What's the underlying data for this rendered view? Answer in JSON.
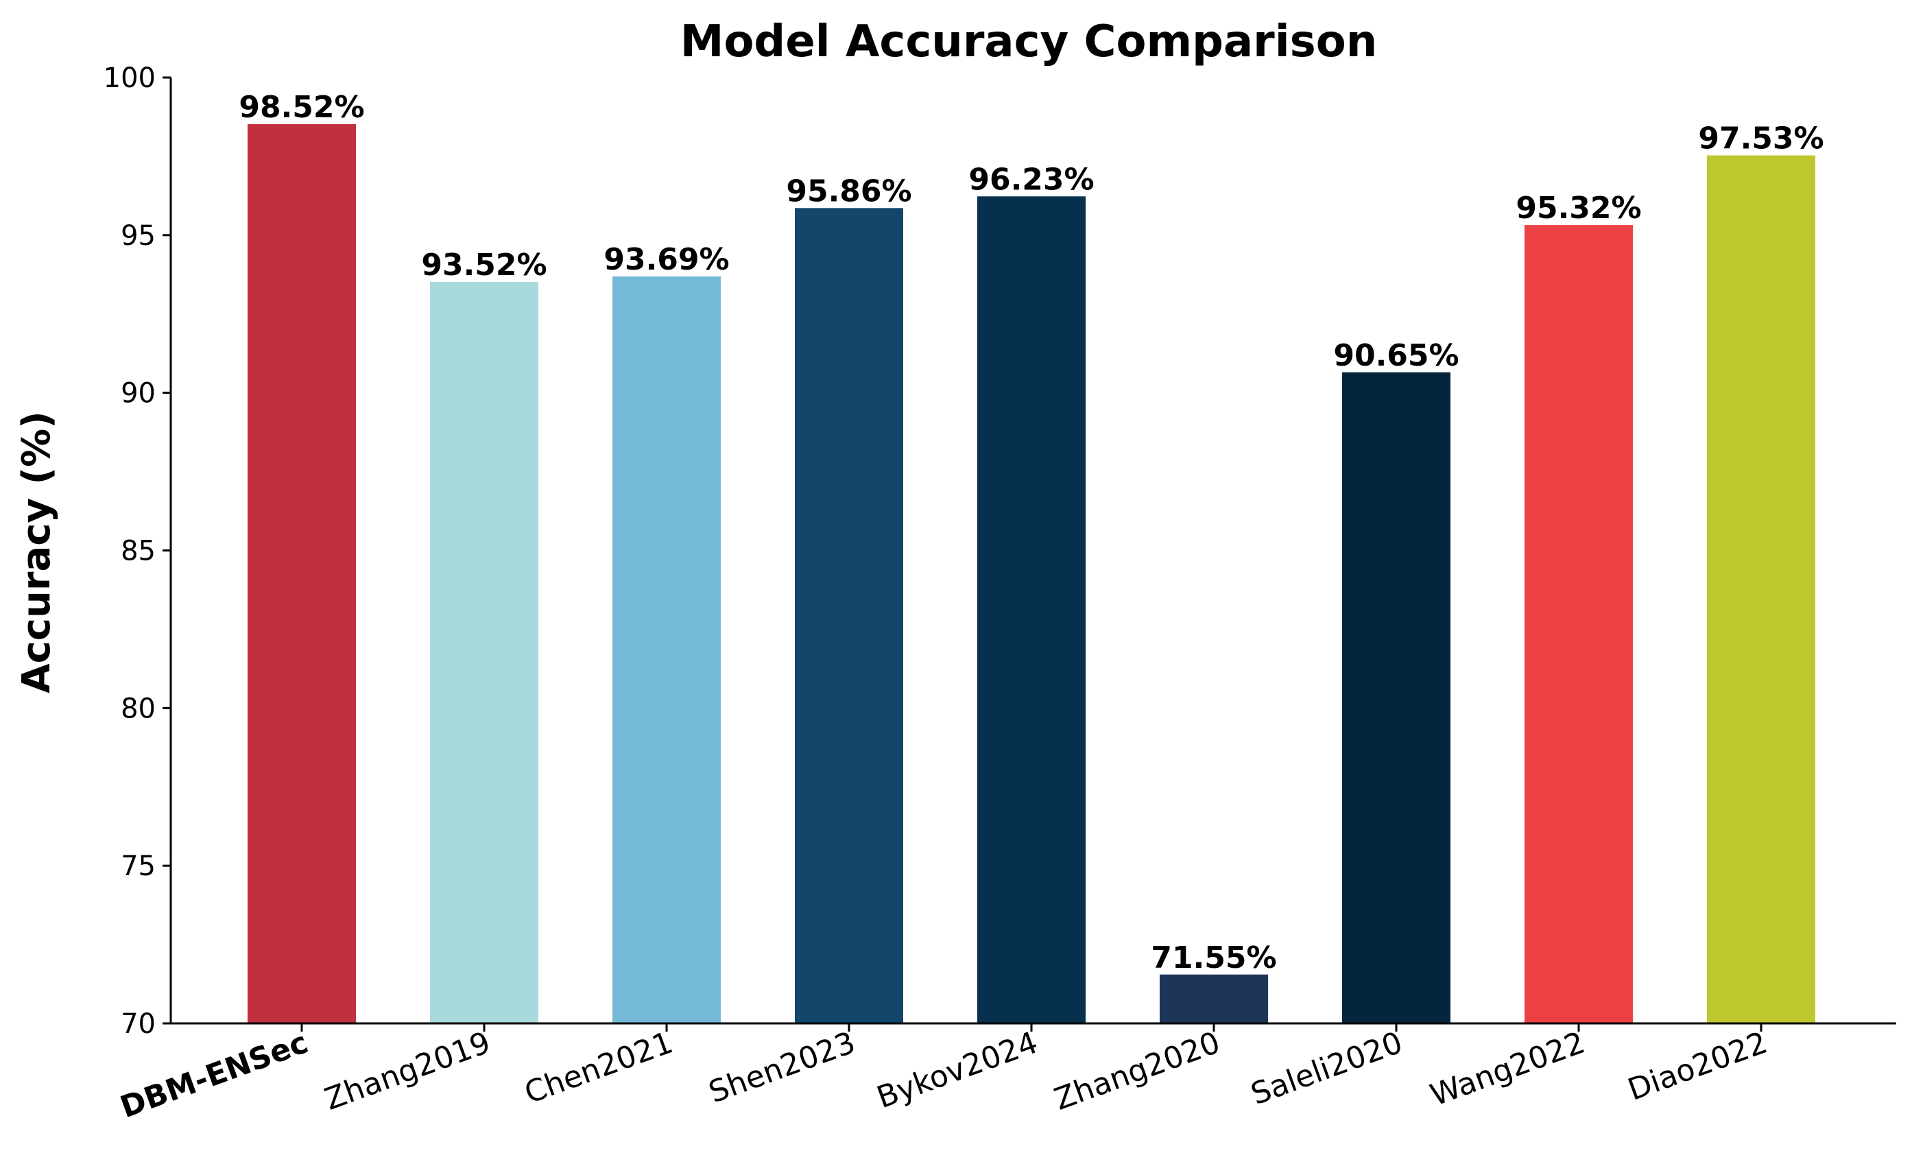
{
  "chart_data": {
    "type": "bar",
    "title": "Model Accuracy Comparison",
    "xlabel": "",
    "ylabel": "Accuracy (%)",
    "ylim": [
      70,
      100
    ],
    "yticks": [
      70,
      75,
      80,
      85,
      90,
      95,
      100
    ],
    "grid": false,
    "categories": [
      "DBM-ENSec",
      "Zhang2019",
      "Chen2021",
      "Shen2023",
      "Bykov2024",
      "Zhang2020",
      "Saleli2020",
      "Wang2022",
      "Diao2022"
    ],
    "values": [
      98.52,
      93.52,
      93.69,
      95.86,
      96.23,
      71.55,
      90.65,
      95.32,
      97.53
    ],
    "data_labels": [
      "98.52%",
      "93.52%",
      "93.69%",
      "95.86%",
      "96.23%",
      "71.55%",
      "90.65%",
      "95.32%",
      "97.53%"
    ],
    "colors": [
      "#C1303F",
      "#A8D9DC",
      "#74B9D6",
      "#12476B",
      "#06304E",
      "#1D3557",
      "#05253D",
      "#EC4142",
      "#BFC72F"
    ],
    "highlight_category": "DBM-ENSec",
    "highlight_label_color": "#C1303F"
  }
}
